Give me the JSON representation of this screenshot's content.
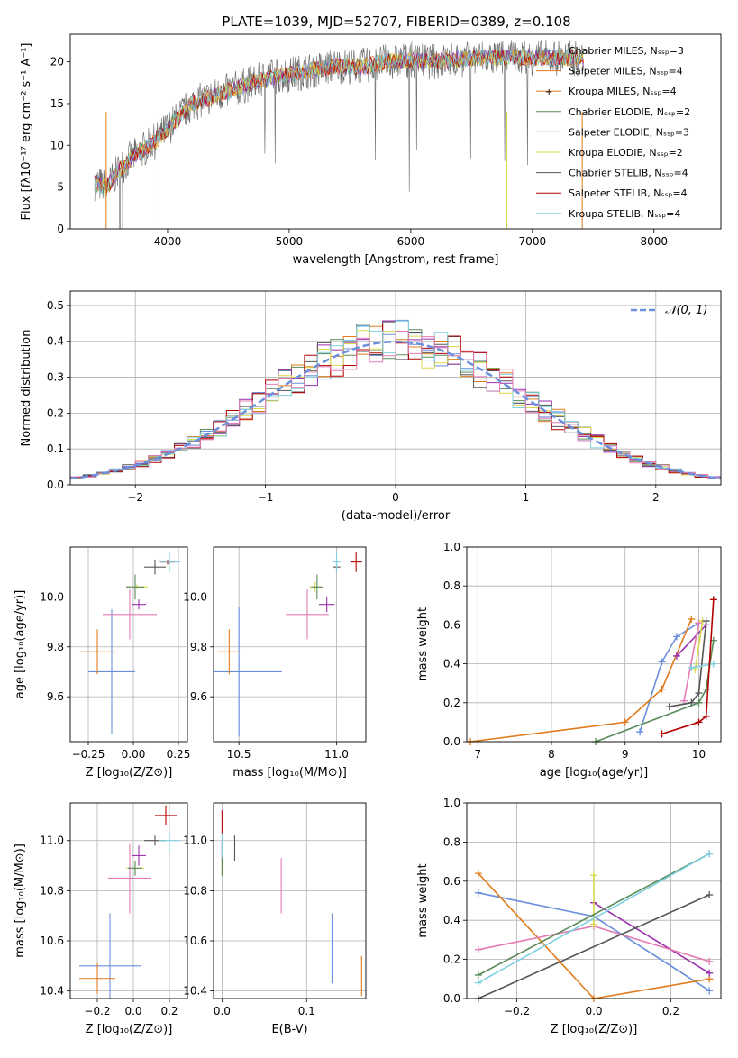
{
  "chart_data": [
    {
      "type": "line",
      "title": "PLATE=1039, MJD=52707, FIBERID=0389, z=0.108",
      "xlabel": "wavelength [Angstrom, rest frame]",
      "ylabel": "Flux [fλ10⁻¹⁷ erg cm⁻² s⁻¹ A⁻¹]",
      "xlim": [
        3200,
        8550
      ],
      "ylim": [
        0,
        23.3
      ],
      "xticks": [
        "4000",
        "5000",
        "6000",
        "7000",
        "8000"
      ],
      "yticks": [
        "0",
        "5",
        "10",
        "15",
        "20"
      ],
      "grid": false,
      "legend_position": "top-right",
      "legend": [
        "Chabrier MILES, Nₛₛₚ=3",
        "Salpeter MILES, Nₛₛₚ=4",
        "Kroupa MILES, Nₛₛₚ=4",
        "Chabrier ELODIE, Nₛₛₚ=2",
        "Salpeter ELODIE, Nₛₛₚ=3",
        "Kroupa ELODIE, Nₛₛₚ=2",
        "Chabrier STELIB, Nₛₛₚ=4",
        "Salpeter STELIB, Nₛₛₚ=4",
        "Kroupa STELIB, Nₛₛₚ=4"
      ],
      "spectrum_envelope": {
        "x": [
          3400,
          3500,
          3600,
          3700,
          3800,
          3900,
          4000,
          4100,
          4200,
          4300,
          4400,
          4600,
          4800,
          5000,
          5200,
          5400,
          5600,
          5800,
          6000,
          6200,
          6400,
          6600,
          6800,
          7000,
          7200,
          7400
        ],
        "y": [
          5.5,
          5.0,
          7.0,
          8.5,
          9.5,
          10.5,
          12.0,
          13.5,
          15.0,
          15.5,
          16.0,
          17.0,
          18.0,
          18.5,
          19.0,
          19.5,
          19.5,
          20.0,
          20.2,
          20.0,
          20.3,
          20.5,
          20.5,
          20.5,
          20.5,
          20.4
        ]
      }
    },
    {
      "type": "bar",
      "xlabel": "(data-model)/error",
      "ylabel": "Normed distribution",
      "xlim": [
        -2.5,
        2.5
      ],
      "ylim": [
        0,
        0.54
      ],
      "xticks": [
        "−2",
        "−1",
        "0",
        "1",
        "2"
      ],
      "yticks": [
        "0.0",
        "0.1",
        "0.2",
        "0.3",
        "0.4",
        "0.5"
      ],
      "grid": true,
      "legend_position": "top-right",
      "reference_curve": "𝒩(0, 1)",
      "bin_width": 0.1,
      "bin_start": -2.5,
      "normal_reference": {
        "mean": 0,
        "sigma": 1
      }
    },
    {
      "type": "scatter",
      "xlabel": "Z [log₁₀(Z/Z⊙)]",
      "ylabel": "age  [log₁₀(age/yr)]",
      "xlim": [
        -0.35,
        0.3
      ],
      "ylim": [
        9.42,
        10.2
      ],
      "xticks": [
        "−0.25",
        "0.00",
        "0.25"
      ],
      "yticks": [
        "9.6",
        "9.8",
        "10.0"
      ],
      "grid": true,
      "points": [
        {
          "x": -0.12,
          "y": 9.7,
          "xerr": 0.13,
          "yerr": 0.25
        },
        {
          "x": -0.2,
          "y": 9.78,
          "xerr": 0.1,
          "yerr": 0.09
        },
        {
          "x": 0.02,
          "y": 10.04,
          "xerr": 0.06,
          "yerr": 0.01
        },
        {
          "x": 0.03,
          "y": 9.97,
          "xerr": 0.04,
          "yerr": 0.02
        },
        {
          "x": -0.02,
          "y": 9.93,
          "xerr": 0.15,
          "yerr": 0.1
        },
        {
          "x": 0.01,
          "y": 10.04,
          "xerr": 0.05,
          "yerr": 0.05
        },
        {
          "x": 0.12,
          "y": 10.12,
          "xerr": 0.06,
          "yerr": 0.03
        },
        {
          "x": 0.19,
          "y": 10.14,
          "xerr": 0.04,
          "yerr": 0.01
        },
        {
          "x": 0.2,
          "y": 10.14,
          "xerr": 0.06,
          "yerr": 0.04
        }
      ]
    },
    {
      "type": "scatter",
      "xlabel": "mass [log₁₀(M/M⊙)]",
      "xlim": [
        10.37,
        11.15
      ],
      "ylim": [
        9.42,
        10.2
      ],
      "xticks": [
        "10.5",
        "11.0"
      ],
      "yticks": [
        "9.6",
        "9.8",
        "10.0"
      ],
      "grid": true,
      "points": [
        {
          "x": 10.5,
          "y": 9.7,
          "xerr": 0.22,
          "yerr": 0.26
        },
        {
          "x": 10.45,
          "y": 9.78,
          "xerr": 0.06,
          "yerr": 0.09
        },
        {
          "x": 10.89,
          "y": 10.04,
          "xerr": 0.03,
          "yerr": 0.02
        },
        {
          "x": 10.95,
          "y": 9.97,
          "xerr": 0.04,
          "yerr": 0.03
        },
        {
          "x": 10.85,
          "y": 9.93,
          "xerr": 0.11,
          "yerr": 0.1
        },
        {
          "x": 10.9,
          "y": 10.04,
          "xerr": 0.03,
          "yerr": 0.05
        },
        {
          "x": 11.0,
          "y": 10.12,
          "xerr": 0.02,
          "yerr": 0.02
        },
        {
          "x": 11.1,
          "y": 10.14,
          "xerr": 0.03,
          "yerr": 0.04
        },
        {
          "x": 11.0,
          "y": 10.14,
          "xerr": 0.02,
          "yerr": 0.04
        }
      ]
    },
    {
      "type": "line",
      "xlabel": "age  [log₁₀(age/yr)]",
      "ylabel": "mass weight",
      "xlim": [
        6.85,
        10.3
      ],
      "ylim": [
        0,
        1.0
      ],
      "xticks": [
        "7",
        "8",
        "9",
        "10"
      ],
      "yticks": [
        "0.0",
        "0.2",
        "0.4",
        "0.6",
        "0.8",
        "1.0"
      ],
      "grid": true,
      "series": [
        {
          "x": [
            9.2,
            9.5,
            9.7,
            10.0
          ],
          "y": [
            0.05,
            0.41,
            0.54,
            0.61
          ]
        },
        {
          "x": [
            6.9,
            9.0,
            9.5,
            9.9
          ],
          "y": [
            0.0,
            0.1,
            0.27,
            0.63
          ]
        },
        {
          "x": [
            9.7,
            10.1
          ],
          "y": [
            0.44,
            0.6
          ]
        },
        {
          "x": [
            9.8,
            10.0
          ],
          "y": [
            0.21,
            0.61
          ]
        },
        {
          "x": [
            9.95,
            10.05
          ],
          "y": [
            0.37,
            0.62
          ]
        },
        {
          "x": [
            9.6,
            9.9,
            10.0,
            10.1
          ],
          "y": [
            0.18,
            0.2,
            0.25,
            0.62
          ]
        },
        {
          "x": [
            8.6,
            10.0,
            10.1,
            10.2
          ],
          "y": [
            0.0,
            0.2,
            0.27,
            0.52
          ]
        },
        {
          "x": [
            9.9,
            10.2
          ],
          "y": [
            0.38,
            0.4
          ]
        },
        {
          "x": [
            9.5,
            10.0,
            10.1,
            10.2
          ],
          "y": [
            0.04,
            0.1,
            0.13,
            0.73
          ]
        }
      ]
    },
    {
      "type": "scatter",
      "xlabel": "Z [log₁₀(Z/Z⊙)]",
      "ylabel": "mass [log₁₀(M/M⊙)]",
      "xlim": [
        -0.35,
        0.3
      ],
      "ylim": [
        10.37,
        11.15
      ],
      "xticks": [
        "−0.2",
        "0.0",
        "0.2"
      ],
      "yticks": [
        "10.4",
        "10.6",
        "10.8",
        "11.0"
      ],
      "grid": true,
      "points": [
        {
          "x": -0.13,
          "y": 10.5,
          "xerr": 0.17,
          "yerr": 0.21
        },
        {
          "x": -0.2,
          "y": 10.45,
          "xerr": 0.1,
          "yerr": 0.06
        },
        {
          "x": 0.01,
          "y": 10.89,
          "xerr": 0.05,
          "yerr": 0.03
        },
        {
          "x": 0.03,
          "y": 10.94,
          "xerr": 0.04,
          "yerr": 0.04
        },
        {
          "x": -0.02,
          "y": 10.85,
          "xerr": 0.12,
          "yerr": 0.14
        },
        {
          "x": 0.01,
          "y": 10.89,
          "xerr": 0.04,
          "yerr": 0.03
        },
        {
          "x": 0.12,
          "y": 11.0,
          "xerr": 0.06,
          "yerr": 0.02
        },
        {
          "x": 0.18,
          "y": 11.1,
          "xerr": 0.06,
          "yerr": 0.04
        },
        {
          "x": 0.2,
          "y": 11.0,
          "xerr": 0.06,
          "yerr": 0.04
        }
      ]
    },
    {
      "type": "scatter",
      "xlabel": "E(B-V)",
      "xlim": [
        -0.01,
        0.17
      ],
      "ylim": [
        10.37,
        11.15
      ],
      "xticks": [
        "0.0",
        "0.1"
      ],
      "yticks": [
        "10.4",
        "10.6",
        "10.8",
        "11.0"
      ],
      "grid": true,
      "points": [
        {
          "x": 0.13,
          "y": 10.57,
          "yerr": 0.14
        },
        {
          "x": 0.165,
          "y": 10.46,
          "yerr": 0.08
        },
        {
          "x": 0.0,
          "y": 10.9,
          "yerr": 0.04
        },
        {
          "x": 0.0,
          "y": 10.96,
          "yerr": 0.04
        },
        {
          "x": 0.07,
          "y": 10.82,
          "yerr": 0.11
        },
        {
          "x": 0.0,
          "y": 10.9,
          "yerr": 0.04
        },
        {
          "x": 0.015,
          "y": 10.97,
          "yerr": 0.05
        },
        {
          "x": 0.0,
          "y": 11.07,
          "yerr": 0.05
        },
        {
          "x": 0.0,
          "y": 10.98,
          "yerr": 0.05
        }
      ]
    },
    {
      "type": "line",
      "xlabel": "Z [log₁₀(Z/Z⊙)]",
      "ylabel": "mass weight",
      "xlim": [
        -0.33,
        0.33
      ],
      "ylim": [
        0,
        1.0
      ],
      "xticks": [
        "−0.2",
        "0.0",
        "0.2"
      ],
      "yticks": [
        "0.0",
        "0.2",
        "0.4",
        "0.6",
        "0.8",
        "1.0"
      ],
      "grid": true,
      "series": [
        {
          "x": [
            -0.3,
            0.0,
            0.3
          ],
          "y": [
            0.54,
            0.42,
            0.04
          ]
        },
        {
          "x": [
            -0.3,
            0.0,
            0.3
          ],
          "y": [
            0.64,
            0.0,
            0.1
          ]
        },
        {
          "x": [
            0.0,
            0.3
          ],
          "y": [
            0.49,
            0.13
          ]
        },
        {
          "x": [
            -0.3,
            0.0,
            0.3
          ],
          "y": [
            0.25,
            0.37,
            0.19
          ]
        },
        {
          "x": [
            0.0,
            0.0
          ],
          "y": [
            0.38,
            0.63
          ]
        },
        {
          "x": [
            -0.3,
            0.3
          ],
          "y": [
            0.0,
            0.53
          ]
        },
        {
          "x": [
            -0.3,
            0.3
          ],
          "y": [
            0.12,
            0.74
          ]
        },
        {
          "x": [
            -0.3,
            0.3
          ],
          "y": [
            0.08,
            0.74
          ]
        }
      ]
    }
  ],
  "series_colors": [
    "#6a8fdc",
    "#e07b1d",
    "#7b5c3a",
    "#5a8a5a",
    "#9b2fae",
    "#d8d84a",
    "#4a4a4a",
    "#b30000",
    "#7fd0e0",
    "#e37cb4"
  ]
}
